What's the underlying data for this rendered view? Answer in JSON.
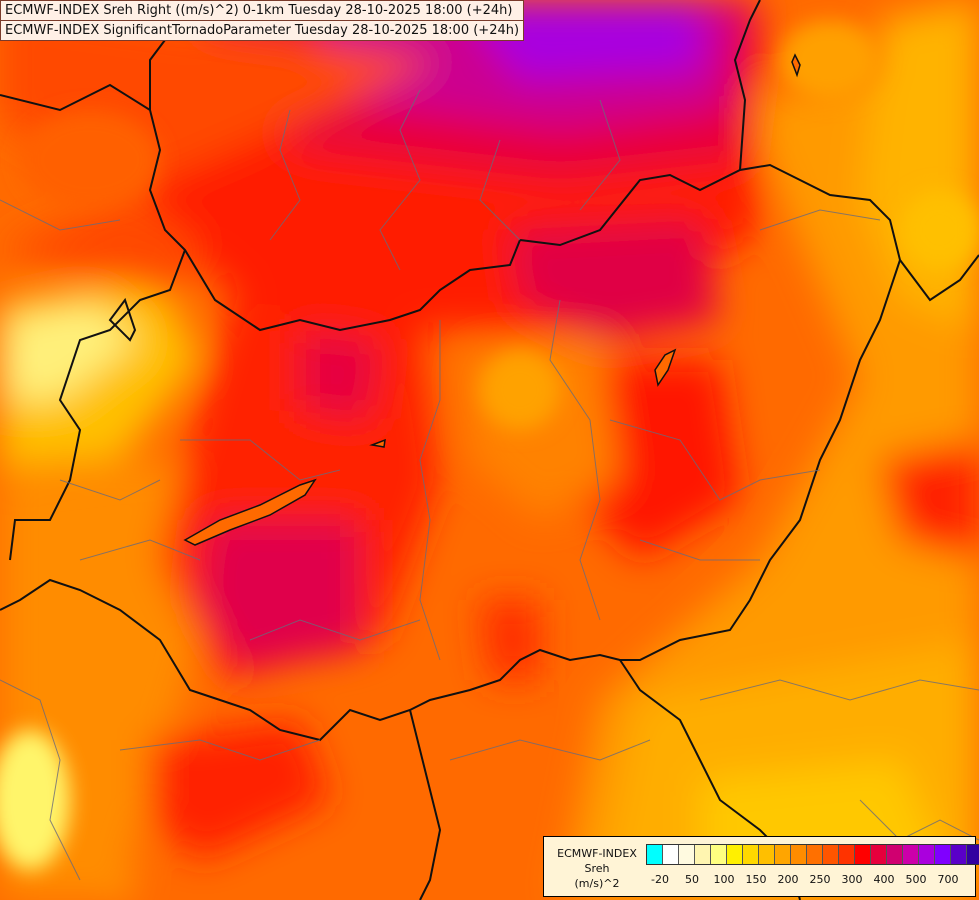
{
  "header": {
    "line1": "ECMWF-INDEX Sreh Right ((m/s)^2) 0-1km Tuesday 28-10-2025 18:00 (+24h)",
    "line2": "ECMWF-INDEX SignificantTornadoParameter Tuesday 28-10-2025 18:00 (+24h)"
  },
  "legend": {
    "title1": "ECMWF-INDEX",
    "title2": "Sreh",
    "title3": "(m/s)^2",
    "colors": [
      "#00ffff",
      "#ffffff",
      "#fffae0",
      "#fff5b0",
      "#ffff80",
      "#fff000",
      "#ffd800",
      "#ffbf00",
      "#ffa500",
      "#ff8c00",
      "#ff7000",
      "#ff5500",
      "#ff3300",
      "#ff0000",
      "#e6003c",
      "#d00070",
      "#cc00aa",
      "#aa00dd",
      "#8000ff",
      "#5a00c8",
      "#3200a0",
      "#0a0078"
    ],
    "ticks": [
      "-20",
      "50",
      "100",
      "150",
      "200",
      "250",
      "300",
      "400",
      "500",
      "700"
    ]
  }
}
